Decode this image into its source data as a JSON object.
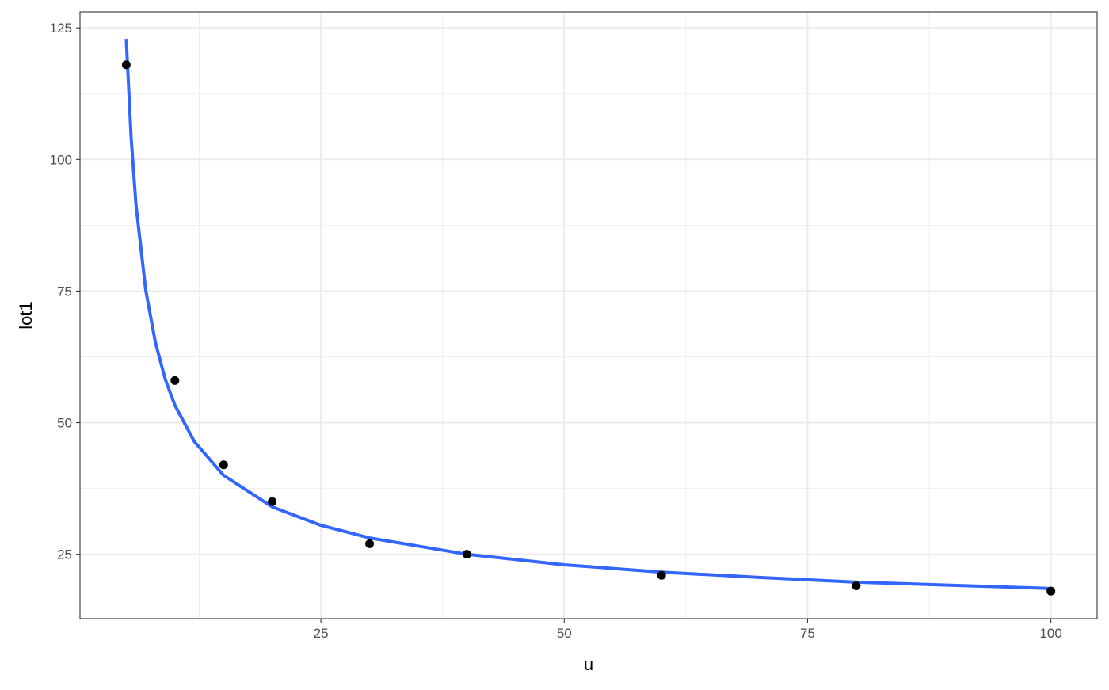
{
  "chart_data": {
    "type": "scatter",
    "xlabel": "u",
    "ylabel": "lot1",
    "xlim": [
      0.25,
      104.75
    ],
    "ylim": [
      12.76,
      128.04
    ],
    "x_ticks": [
      25,
      50,
      75,
      100
    ],
    "y_ticks": [
      25,
      50,
      75,
      100,
      125
    ],
    "grid": true,
    "points": {
      "x": [
        5,
        10,
        15,
        20,
        30,
        40,
        60,
        80,
        100
      ],
      "y": [
        118,
        58,
        42,
        35,
        27,
        25,
        21,
        19,
        18
      ],
      "color": "#000000"
    },
    "fitted_line": {
      "x": [
        5,
        5.5,
        6,
        7,
        8,
        9,
        10,
        12,
        15,
        20,
        25,
        30,
        40,
        50,
        60,
        70,
        80,
        90,
        100
      ],
      "y": [
        122.9,
        104.2,
        91.4,
        75.2,
        65.2,
        58.3,
        53.3,
        46.4,
        40.0,
        34.0,
        30.5,
        28.1,
        25.0,
        23.0,
        21.6,
        20.6,
        19.7,
        19.1,
        18.5
      ],
      "color": "#3366FF"
    }
  }
}
